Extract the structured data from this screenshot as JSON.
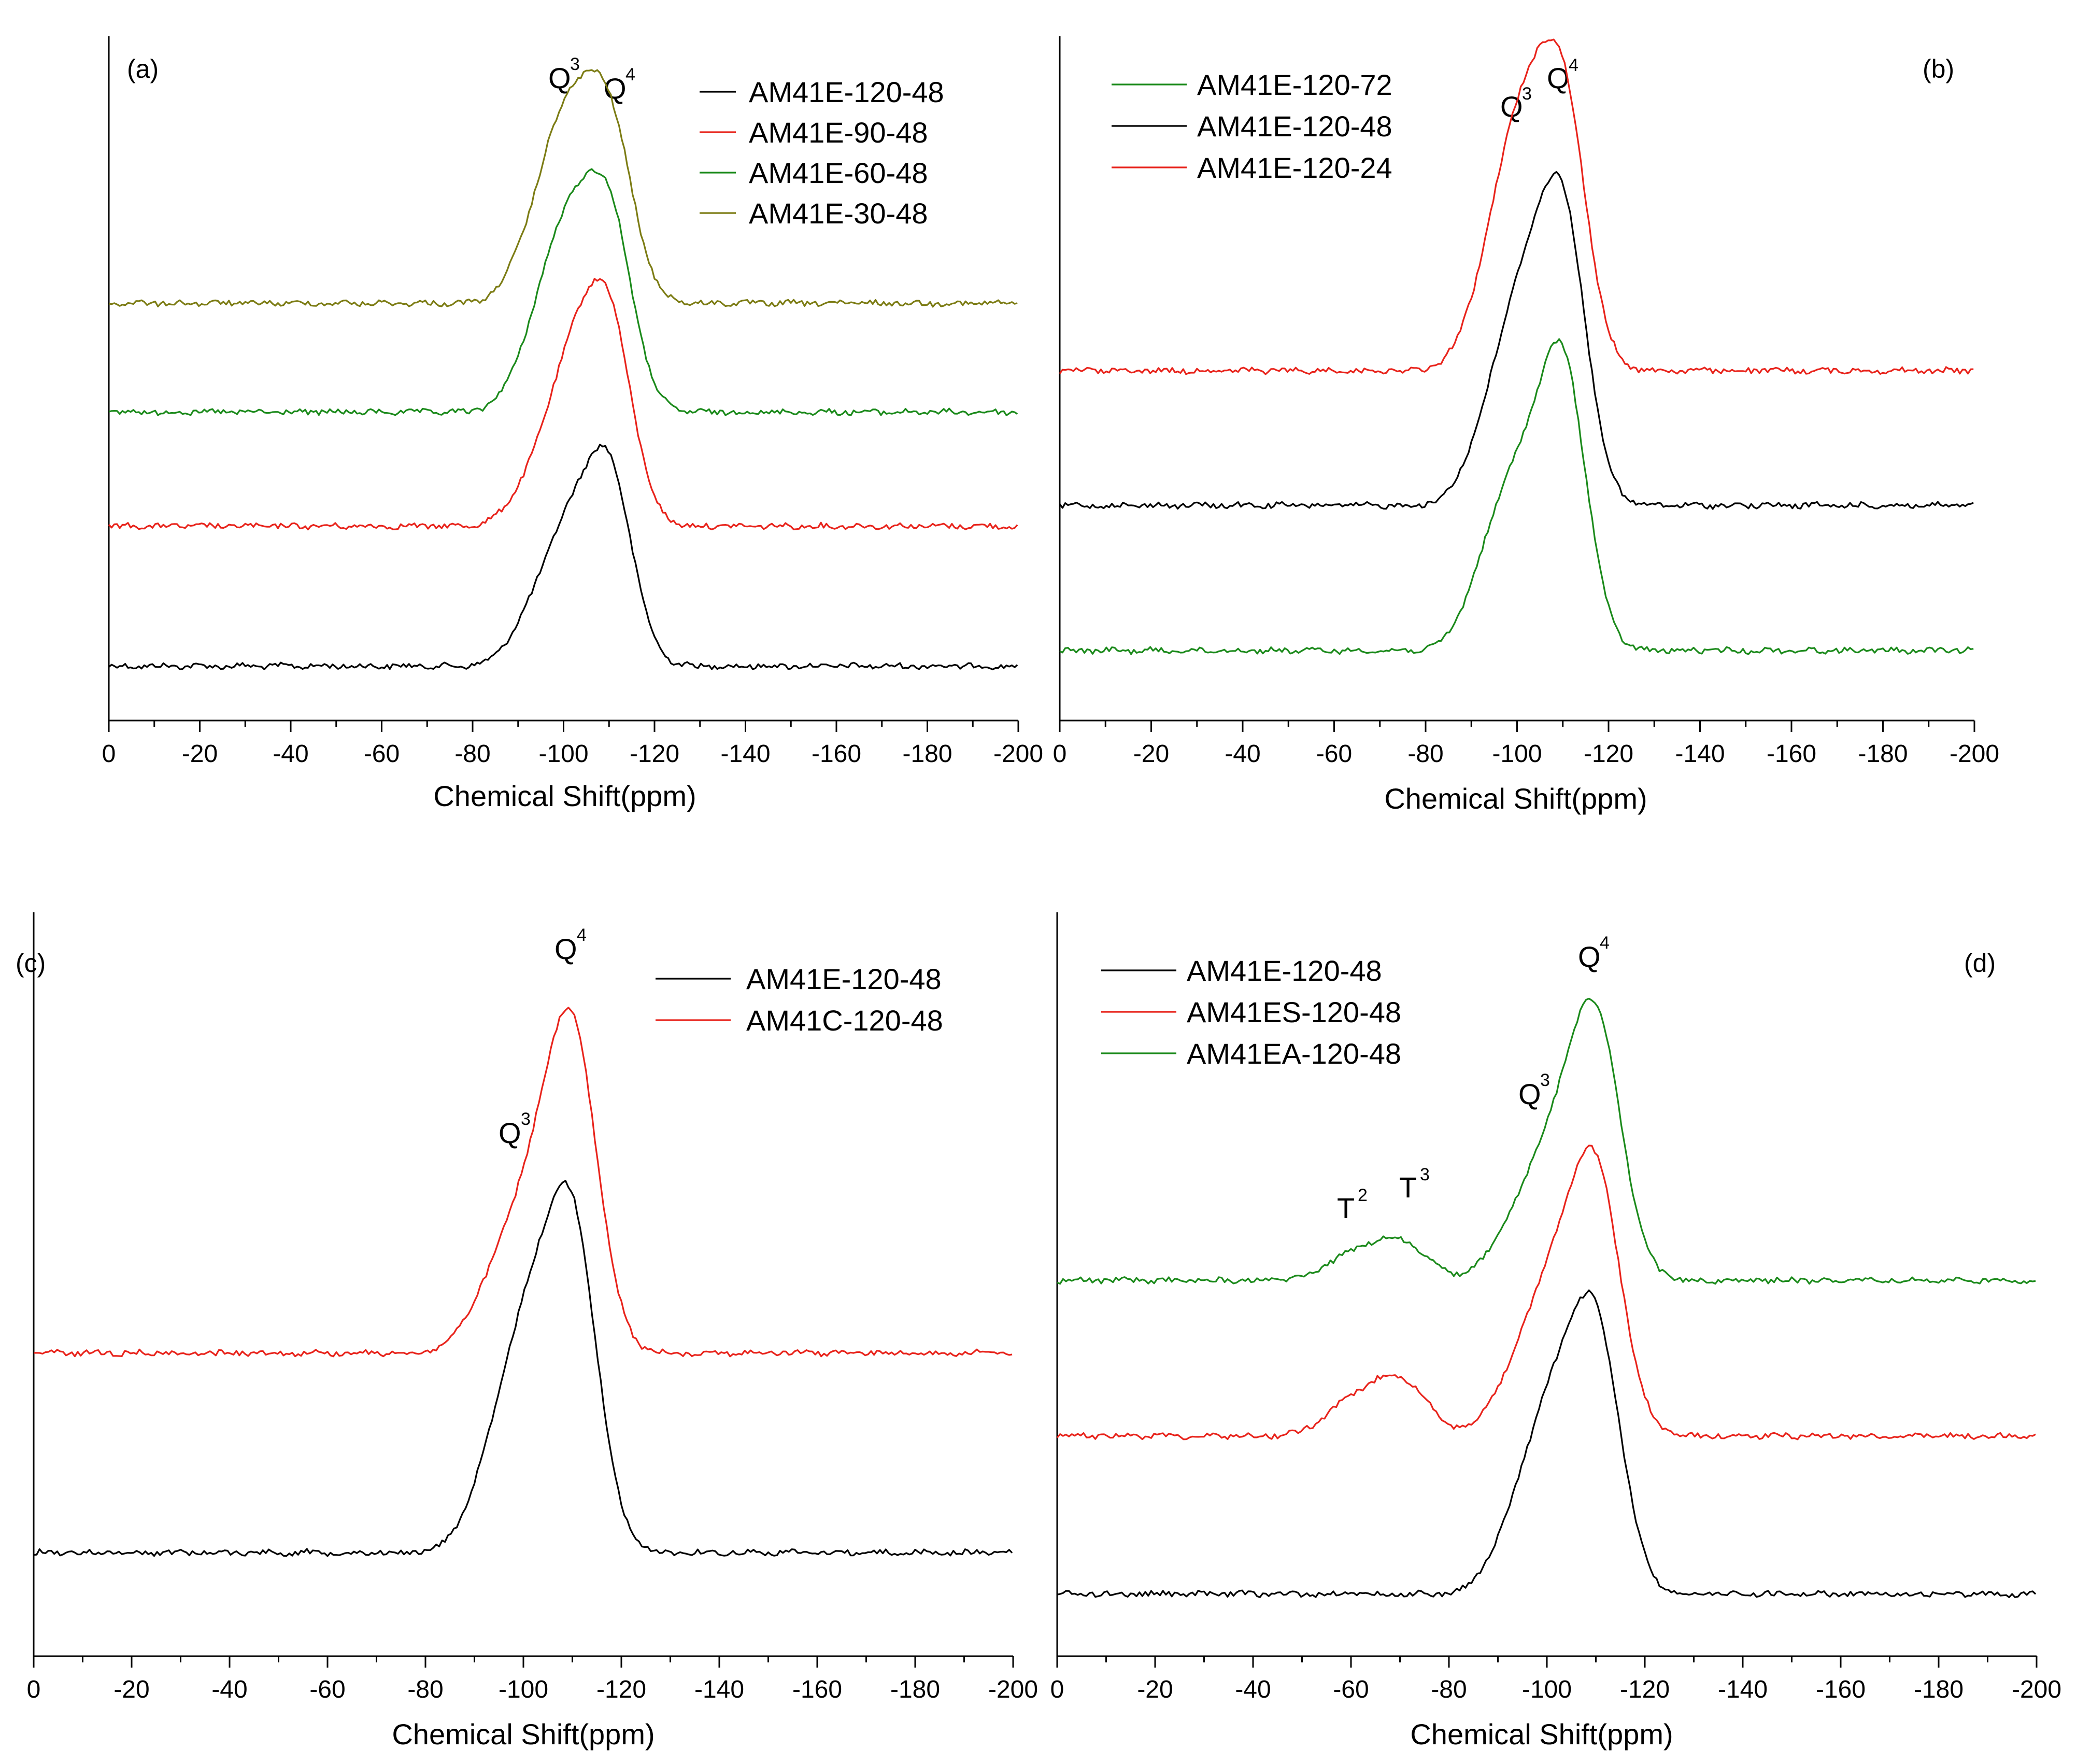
{
  "chart_data": [
    {
      "panel": "(a)",
      "type": "line",
      "xlabel": "Chemical Shift(ppm)",
      "ylabel": "",
      "xlim": [
        0,
        -200
      ],
      "xticks": [
        "0",
        "-20",
        "-40",
        "-60",
        "-80",
        "-100",
        "-120",
        "-140",
        "-160",
        "-180",
        "-200"
      ],
      "legend": "top-right",
      "series": [
        {
          "name": "AM41E-120-48",
          "color": "#000000",
          "peaks": [
            {
              "ppm": -100,
              "height": 0.54
            },
            {
              "ppm": -110,
              "height": 0.8
            }
          ]
        },
        {
          "name": "AM41E-90-48",
          "color": "#e8231b",
          "peaks": [
            {
              "ppm": -101,
              "height": 0.64
            },
            {
              "ppm": -110,
              "height": 0.82
            }
          ]
        },
        {
          "name": "AM41E-60-48",
          "color": "#1b8a1b",
          "peaks": [
            {
              "ppm": -100,
              "height": 0.76
            },
            {
              "ppm": -110,
              "height": 0.8
            }
          ]
        },
        {
          "name": "AM41E-30-48",
          "color": "#7c7c14",
          "peaks": [
            {
              "ppm": -100,
              "height": 0.77
            },
            {
              "ppm": -110,
              "height": 0.74
            }
          ]
        }
      ],
      "annotations": [
        {
          "text": "Q",
          "sup": "3",
          "ppm": -100
        },
        {
          "text": "Q",
          "sup": "4",
          "ppm": -112
        }
      ]
    },
    {
      "panel": "(b)",
      "type": "line",
      "xlabel": "Chemical Shift(ppm)",
      "ylabel": "",
      "xlim": [
        0,
        -200
      ],
      "xticks": [
        "0",
        "-20",
        "-40",
        "-60",
        "-80",
        "-100",
        "-120",
        "-140",
        "-160",
        "-180",
        "-200"
      ],
      "legend": "top-left",
      "series": [
        {
          "name": "AM41E-120-72",
          "color": "#1b8a1b",
          "peaks": [
            {
              "ppm": -99,
              "height": 0.58
            },
            {
              "ppm": -110,
              "height": 1.0
            }
          ]
        },
        {
          "name": "AM41E-120-48",
          "color": "#000000",
          "peaks": [
            {
              "ppm": -100,
              "height": 0.68
            },
            {
              "ppm": -110,
              "height": 1.0
            }
          ]
        },
        {
          "name": "AM41E-120-24",
          "color": "#e8231b",
          "peaks": [
            {
              "ppm": -100,
              "height": 0.84
            },
            {
              "ppm": -110,
              "height": 0.93
            }
          ]
        }
      ],
      "annotations": [
        {
          "text": "Q",
          "sup": "3",
          "ppm": -100
        },
        {
          "text": "Q",
          "sup": "4",
          "ppm": -111
        }
      ]
    },
    {
      "panel": "(c)",
      "type": "line",
      "xlabel": "Chemical Shift(ppm)",
      "ylabel": "",
      "xlim": [
        0,
        -200
      ],
      "xticks": [
        "0",
        "-20",
        "-40",
        "-60",
        "-80",
        "-100",
        "-120",
        "-140",
        "-160",
        "-180",
        "-200"
      ],
      "legend": "top-right",
      "series": [
        {
          "name": "AM41E-120-48",
          "color": "#000000",
          "peaks": [
            {
              "ppm": -100,
              "height": 0.68
            },
            {
              "ppm": -110,
              "height": 1.0
            }
          ]
        },
        {
          "name": "AM41C-120-48",
          "color": "#e8231b",
          "peaks": [
            {
              "ppm": -100,
              "height": 0.45
            },
            {
              "ppm": -110,
              "height": 1.0
            }
          ]
        }
      ],
      "annotations": [
        {
          "text": "Q",
          "sup": "3",
          "ppm": -100
        },
        {
          "text": "Q",
          "sup": "4",
          "ppm": -111
        }
      ]
    },
    {
      "panel": "(d)",
      "type": "line",
      "xlabel": "Chemical Shift(ppm)",
      "ylabel": "",
      "xlim": [
        0,
        -200
      ],
      "xticks": [
        "0",
        "-20",
        "-40",
        "-60",
        "-80",
        "-100",
        "-120",
        "-140",
        "-160",
        "-180",
        "-200"
      ],
      "legend": "top-left",
      "series": [
        {
          "name": "AM41E-120-48",
          "color": "#000000",
          "peaks": [
            {
              "ppm": -100,
              "height": 0.68
            },
            {
              "ppm": -110,
              "height": 1.0
            }
          ]
        },
        {
          "name": "AM41ES-120-48",
          "color": "#e8231b",
          "peaks": [
            {
              "ppm": -60,
              "height": 0.12
            },
            {
              "ppm": -70,
              "height": 0.22
            },
            {
              "ppm": -100,
              "height": 0.55
            },
            {
              "ppm": -110,
              "height": 1.0
            }
          ]
        },
        {
          "name": "AM41EA-120-48",
          "color": "#1b8a1b",
          "peaks": [
            {
              "ppm": -60,
              "height": 0.09
            },
            {
              "ppm": -70,
              "height": 0.15
            },
            {
              "ppm": -100,
              "height": 0.48
            },
            {
              "ppm": -110,
              "height": 1.0
            }
          ]
        }
      ],
      "annotations": [
        {
          "text": "T",
          "sup": "2",
          "ppm": -61
        },
        {
          "text": "T",
          "sup": "3",
          "ppm": -72
        },
        {
          "text": "Q",
          "sup": "3",
          "ppm": -97
        },
        {
          "text": "Q",
          "sup": "4",
          "ppm": -110
        }
      ]
    }
  ]
}
